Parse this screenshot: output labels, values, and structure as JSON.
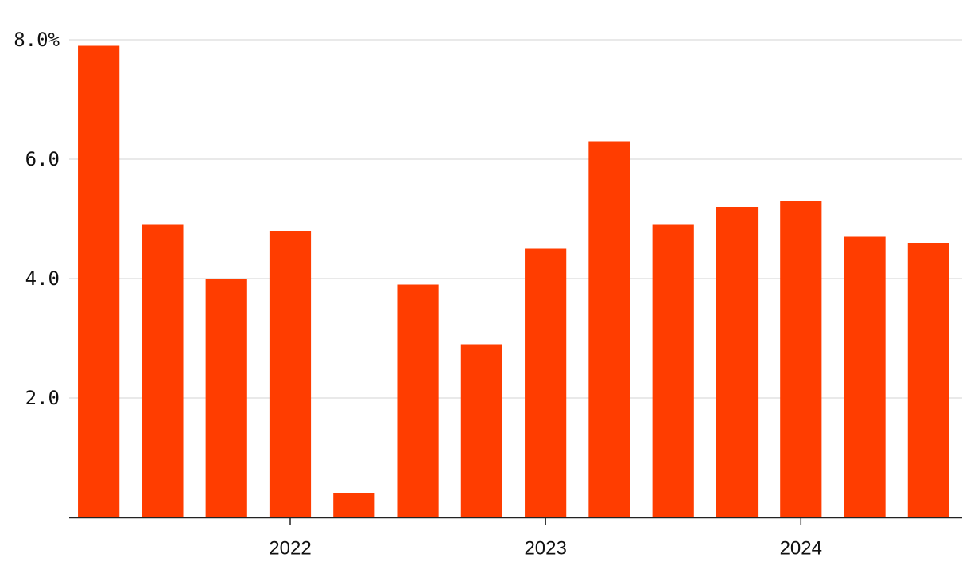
{
  "chart_data": {
    "type": "bar",
    "categories": [
      null,
      null,
      null,
      "2022",
      null,
      null,
      null,
      "2023",
      null,
      null,
      null,
      "2024",
      null,
      null
    ],
    "values": [
      7.9,
      4.9,
      4.0,
      4.8,
      0.4,
      3.9,
      2.9,
      4.5,
      6.3,
      4.9,
      5.2,
      5.3,
      4.7,
      4.6
    ],
    "color": "#ff3d00",
    "ylim": [
      0,
      8
    ],
    "yticks": [
      {
        "value": 2,
        "label": "2.0"
      },
      {
        "value": 4,
        "label": "4.0"
      },
      {
        "value": 6,
        "label": "6.0"
      },
      {
        "value": 8,
        "label": "8.0%"
      }
    ],
    "grid": true
  }
}
